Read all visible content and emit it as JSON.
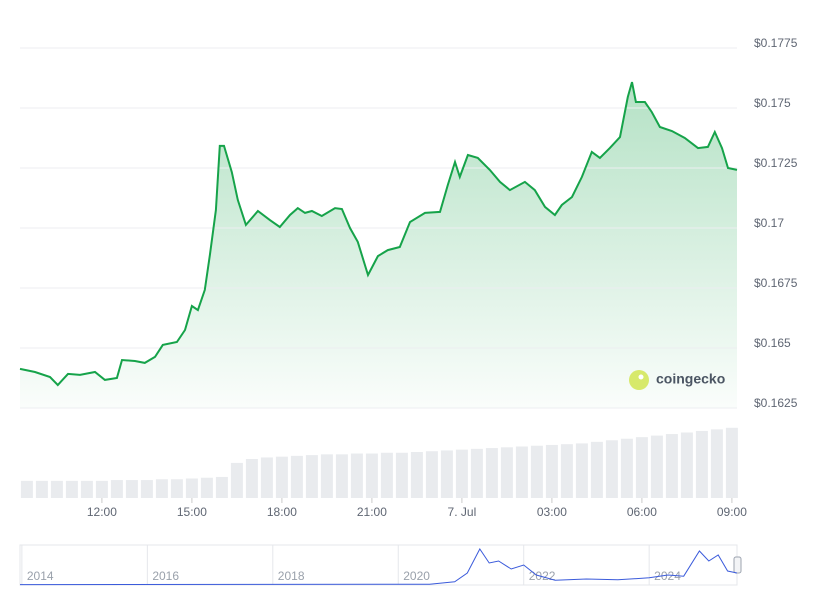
{
  "chart_data": [
    {
      "type": "area",
      "watermark": "coingecko",
      "x": [
        9.27,
        9.77,
        10.27,
        10.53,
        10.87,
        11.27,
        11.77,
        12.1,
        12.5,
        12.67,
        13.1,
        13.43,
        13.77,
        14.03,
        14.5,
        14.77,
        15.0,
        15.2,
        15.43,
        15.6,
        15.8,
        15.93,
        16.07,
        16.33,
        16.53,
        16.8,
        17.2,
        17.6,
        17.93,
        18.27,
        18.53,
        18.77,
        19.0,
        19.33,
        19.77,
        20.0,
        20.27,
        20.53,
        20.87,
        21.2,
        21.53,
        21.93,
        22.27,
        22.77,
        23.27,
        23.53,
        23.77,
        23.93,
        24.2,
        24.53,
        24.93,
        25.27,
        25.6,
        26.1,
        26.43,
        26.77,
        27.1,
        27.33,
        27.67,
        28.0,
        28.33,
        28.6,
        28.93,
        29.27,
        29.53,
        29.67,
        29.8,
        30.1,
        30.33,
        30.6,
        31.0,
        31.43,
        31.87,
        32.2,
        32.43,
        32.67,
        32.87,
        33.17
      ],
      "series": [
        {
          "color": "#16a34a",
          "values": [
            0.16413,
            0.164,
            0.16379,
            0.16346,
            0.16392,
            0.16388,
            0.164,
            0.16367,
            0.16375,
            0.1645,
            0.16446,
            0.16438,
            0.16463,
            0.16513,
            0.16525,
            0.16575,
            0.16675,
            0.16658,
            0.16742,
            0.16888,
            0.17075,
            0.17342,
            0.17342,
            0.17233,
            0.17117,
            0.17013,
            0.17071,
            0.17033,
            0.17004,
            0.17054,
            0.17083,
            0.17063,
            0.17071,
            0.1705,
            0.17083,
            0.17079,
            0.17,
            0.16942,
            0.16804,
            0.16883,
            0.16908,
            0.16921,
            0.17025,
            0.17063,
            0.17067,
            0.17179,
            0.17275,
            0.17213,
            0.17304,
            0.17292,
            0.17242,
            0.17192,
            0.17158,
            0.17192,
            0.17158,
            0.17088,
            0.17054,
            0.17096,
            0.17129,
            0.17213,
            0.17317,
            0.17292,
            0.17333,
            0.17379,
            0.17546,
            0.17608,
            0.17525,
            0.17525,
            0.17483,
            0.17421,
            0.17404,
            0.17375,
            0.17333,
            0.17338,
            0.174,
            0.17333,
            0.1725,
            0.17242
          ]
        },
        {
          "type": "bar",
          "axis": "y2",
          "color": "#e9ebee",
          "x": [
            9.5,
            10,
            10.5,
            11,
            11.5,
            12,
            12.5,
            13,
            13.5,
            14,
            14.5,
            15,
            15.5,
            16,
            16.5,
            17,
            17.5,
            18,
            18.5,
            19,
            19.5,
            20,
            20.5,
            21,
            21.5,
            22,
            22.5,
            23,
            23.5,
            24,
            24.5,
            25,
            25.5,
            26,
            26.5,
            27,
            27.5,
            28,
            28.5,
            29,
            29.5,
            30,
            30.5,
            31,
            31.5,
            32,
            32.5,
            33
          ],
          "values": [
            22,
            22,
            22,
            22,
            22,
            22,
            23,
            23,
            23,
            24,
            24,
            25,
            26,
            27,
            45,
            50,
            52,
            53,
            54,
            55,
            56,
            56,
            57,
            57,
            58,
            58,
            59,
            60,
            61,
            62,
            63,
            64,
            65,
            66,
            67,
            68,
            69,
            70,
            72,
            74,
            76,
            78,
            80,
            82,
            84,
            86,
            88,
            90
          ]
        }
      ],
      "xlim": [
        9.27,
        33.17
      ],
      "xticks": [
        {
          "value": 12,
          "label": "12:00"
        },
        {
          "value": 15,
          "label": "15:00"
        },
        {
          "value": 18,
          "label": "18:00"
        },
        {
          "value": 21,
          "label": "21:00"
        },
        {
          "value": 24,
          "label": "7. Jul"
        },
        {
          "value": 27,
          "label": "03:00"
        },
        {
          "value": 30,
          "label": "06:00"
        },
        {
          "value": 33,
          "label": "09:00"
        }
      ],
      "ylim": [
        0.1625,
        0.1775
      ],
      "yticks": [
        {
          "value": 0.1625,
          "label": "$0.1625"
        },
        {
          "value": 0.165,
          "label": "$0.165"
        },
        {
          "value": 0.1675,
          "label": "$0.1675"
        },
        {
          "value": 0.17,
          "label": "$0.17"
        },
        {
          "value": 0.1725,
          "label": "$0.1725"
        },
        {
          "value": 0.175,
          "label": "$0.175"
        },
        {
          "value": 0.1775,
          "label": "$0.1775"
        }
      ],
      "y2lim": [
        0,
        100
      ],
      "grid": true
    },
    {
      "type": "line",
      "color": "#3b5bdb",
      "x": [
        2013.97,
        2020.5,
        2020.9,
        2021.1,
        2021.3,
        2021.45,
        2021.6,
        2021.8,
        2022.0,
        2022.2,
        2022.5,
        2023.0,
        2023.5,
        2024.0,
        2024.3,
        2024.55,
        2024.8,
        2024.95,
        2025.1,
        2025.25,
        2025.4
      ],
      "values": [
        1,
        2,
        8,
        30,
        90,
        55,
        60,
        40,
        50,
        25,
        12,
        15,
        13,
        18,
        25,
        22,
        85,
        60,
        75,
        35,
        30
      ],
      "xlim": [
        2013.97,
        2025.4
      ],
      "xticks": [
        2014,
        2016,
        2018,
        2020,
        2022,
        2024
      ],
      "ylim": [
        0,
        100
      ]
    }
  ]
}
